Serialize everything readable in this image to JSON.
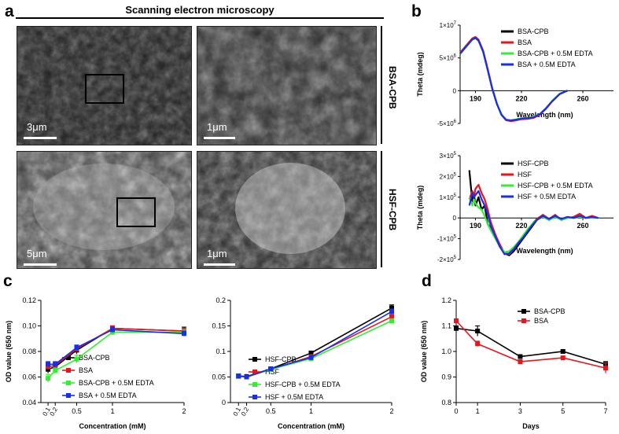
{
  "panels": {
    "a": "a",
    "b": "b",
    "c": "c",
    "d": "d"
  },
  "sem": {
    "title": "Scanning electron microscopy",
    "row1_label": "BSA-CPB",
    "row2_label": "HSF-CPB",
    "scale_left_top": "3μm",
    "scale_right_top": "1μm",
    "scale_left_bottom": "5μm",
    "scale_right_bottom": "1μm"
  },
  "colors": {
    "black": "#000000",
    "red": "#e8161c",
    "green": "#33ee33",
    "blue": "#1a2ee8"
  },
  "chart_data": [
    {
      "id": "b-top",
      "type": "line",
      "xlabel": "Wavelength (nm)",
      "ylabel": "Theta (mdeg)",
      "xlim": [
        180,
        280
      ],
      "ylim": [
        -5000000,
        10000000
      ],
      "x_ticks": [
        190,
        220,
        260
      ],
      "y_ticks": [
        {
          "v": 10000000,
          "base": "1×10",
          "exp": "7"
        },
        {
          "v": 5000000,
          "base": "5×10",
          "exp": "6"
        },
        {
          "v": 0,
          "base": "0",
          "exp": ""
        },
        {
          "v": -5000000,
          "base": "-5×10",
          "exp": "6"
        }
      ],
      "series": [
        {
          "name": "BSA-CPB",
          "color": "#000000",
          "x": [
            180,
            184,
            188,
            190,
            192,
            195,
            198,
            201,
            204,
            207,
            210,
            213,
            216,
            220,
            224,
            228,
            232,
            236,
            240,
            245,
            250
          ],
          "y": [
            5700000,
            6800000,
            7900000,
            8100000,
            7700000,
            6000000,
            3200000,
            300000,
            -2000000,
            -3700000,
            -4500000,
            -4600000,
            -4500000,
            -4300000,
            -4250000,
            -4100000,
            -3600000,
            -2700000,
            -1600000,
            -500000,
            0
          ]
        },
        {
          "name": "BSA",
          "color": "#e8161c",
          "x": [
            180,
            184,
            188,
            190,
            192,
            195,
            198,
            201,
            204,
            207,
            210,
            213,
            216,
            220,
            224,
            228,
            232,
            236,
            240,
            245,
            250
          ],
          "y": [
            5800000,
            6900000,
            8000000,
            8200000,
            7800000,
            6100000,
            3300000,
            350000,
            -2000000,
            -3700000,
            -4500000,
            -4650000,
            -4550000,
            -4350000,
            -4300000,
            -4150000,
            -3650000,
            -2750000,
            -1650000,
            -500000,
            0
          ]
        },
        {
          "name": "BSA-CPB + 0.5M EDTA",
          "color": "#33ee33",
          "x": [
            180,
            184,
            188,
            190,
            192,
            195,
            198,
            201,
            204,
            207,
            210,
            213,
            216,
            220,
            224,
            228,
            232,
            236,
            240,
            245,
            250
          ],
          "y": [
            5600000,
            6700000,
            7800000,
            8000000,
            7600000,
            5900000,
            3100000,
            250000,
            -2000000,
            -3600000,
            -4400000,
            -4500000,
            -4400000,
            -4200000,
            -4150000,
            -4000000,
            -3550000,
            -2650000,
            -1550000,
            -450000,
            0
          ]
        },
        {
          "name": "BSA + 0.5M EDTA",
          "color": "#1a2ee8",
          "x": [
            180,
            184,
            188,
            190,
            192,
            195,
            198,
            201,
            204,
            207,
            210,
            213,
            216,
            220,
            224,
            228,
            232,
            236,
            240,
            245,
            250
          ],
          "y": [
            5650000,
            6750000,
            7850000,
            8050000,
            7650000,
            5950000,
            3150000,
            280000,
            -2050000,
            -3700000,
            -4450000,
            -4550000,
            -4450000,
            -4250000,
            -4200000,
            -4050000,
            -3600000,
            -2700000,
            -1600000,
            -480000,
            0
          ]
        }
      ]
    },
    {
      "id": "b-bottom",
      "type": "line",
      "xlabel": "Wavelength (nm)",
      "ylabel": "Theta (mdeg)",
      "xlim": [
        180,
        280
      ],
      "ylim": [
        -200000,
        300000
      ],
      "x_ticks": [
        190,
        220,
        260
      ],
      "y_ticks": [
        {
          "v": 300000,
          "base": "3×10",
          "exp": "5"
        },
        {
          "v": 200000,
          "base": "2×10",
          "exp": "5"
        },
        {
          "v": 100000,
          "base": "1×10",
          "exp": "5"
        },
        {
          "v": 0,
          "base": "0",
          "exp": ""
        },
        {
          "v": -100000,
          "base": "-1×10",
          "exp": "5"
        },
        {
          "v": -200000,
          "base": "-2×10",
          "exp": "5"
        }
      ],
      "series": [
        {
          "name": "HSF-CPB",
          "color": "#000000",
          "x": [
            186,
            187,
            188,
            189,
            190,
            192,
            194,
            196,
            198,
            200,
            203,
            206,
            209,
            212,
            215,
            218,
            221,
            224,
            227,
            230,
            234,
            238,
            242,
            246,
            250,
            254,
            258,
            262,
            266,
            270
          ],
          "y": [
            230000,
            150000,
            80000,
            120000,
            60000,
            100000,
            40000,
            60000,
            -30000,
            -50000,
            -90000,
            -130000,
            -170000,
            -180000,
            -160000,
            -130000,
            -100000,
            -70000,
            -40000,
            -10000,
            10000,
            -10000,
            10000,
            -5000,
            5000,
            0,
            10000,
            0,
            5000,
            0
          ]
        },
        {
          "name": "HSF",
          "color": "#e8161c",
          "x": [
            186,
            187,
            188,
            189,
            190,
            192,
            194,
            196,
            198,
            200,
            203,
            206,
            209,
            212,
            215,
            218,
            221,
            224,
            227,
            230,
            234,
            238,
            242,
            246,
            250,
            254,
            258,
            262,
            266,
            270
          ],
          "y": [
            90000,
            110000,
            130000,
            100000,
            140000,
            160000,
            120000,
            90000,
            40000,
            -20000,
            -80000,
            -130000,
            -170000,
            -175000,
            -150000,
            -120000,
            -90000,
            -60000,
            -30000,
            -5000,
            15000,
            -5000,
            15000,
            -10000,
            0,
            5000,
            20000,
            0,
            10000,
            0
          ]
        },
        {
          "name": "HSF-CPB + 0.5M EDTA",
          "color": "#33ee33",
          "x": [
            186,
            187,
            188,
            189,
            190,
            192,
            194,
            196,
            198,
            200,
            203,
            206,
            209,
            212,
            215,
            218,
            221,
            224,
            227,
            230,
            234,
            238,
            242,
            246,
            250,
            254,
            258,
            262,
            266,
            270
          ],
          "y": [
            100000,
            80000,
            60000,
            90000,
            70000,
            50000,
            40000,
            10000,
            -30000,
            -60000,
            -100000,
            -140000,
            -165000,
            -160000,
            -140000,
            -115000,
            -85000,
            -55000,
            -30000,
            -10000,
            5000,
            -10000,
            5000,
            -10000,
            0,
            0,
            5000,
            0,
            0,
            0
          ]
        },
        {
          "name": "HSF + 0.5M EDTA",
          "color": "#1a2ee8",
          "x": [
            186,
            187,
            188,
            189,
            190,
            192,
            194,
            196,
            198,
            200,
            203,
            206,
            209,
            212,
            215,
            218,
            221,
            224,
            227,
            230,
            234,
            238,
            242,
            246,
            250,
            254,
            258,
            262,
            266,
            270
          ],
          "y": [
            60000,
            90000,
            120000,
            100000,
            110000,
            130000,
            90000,
            60000,
            20000,
            -40000,
            -90000,
            -140000,
            -175000,
            -170000,
            -150000,
            -120000,
            -95000,
            -65000,
            -35000,
            -10000,
            10000,
            -5000,
            10000,
            -5000,
            5000,
            0,
            10000,
            0,
            5000,
            0
          ]
        }
      ]
    },
    {
      "id": "c-left",
      "type": "line",
      "xlabel": "Concentration (mM)",
      "ylabel": "OD value (650 nm)",
      "xlim": [
        0,
        2
      ],
      "ylim": [
        0.04,
        0.12
      ],
      "x_ticks": [
        {
          "v": 0.1,
          "label": "0.1"
        },
        {
          "v": 0.2,
          "label": "0.2"
        },
        {
          "v": 0.5,
          "label": "0.5"
        },
        {
          "v": 1,
          "label": "1"
        },
        {
          "v": 2,
          "label": "2"
        }
      ],
      "y_ticks": [
        0.04,
        0.06,
        0.08,
        0.1,
        0.12
      ],
      "series": [
        {
          "name": "BSA-CPB",
          "color": "#000000",
          "marker": "square",
          "x": [
            0.1,
            0.2,
            0.5,
            1,
            2
          ],
          "y": [
            0.066,
            0.068,
            0.081,
            0.098,
            0.096
          ],
          "err": [
            0.003,
            0.002,
            0.003,
            0.002,
            0.003
          ]
        },
        {
          "name": "BSA",
          "color": "#e8161c",
          "marker": "square",
          "x": [
            0.1,
            0.2,
            0.5,
            1,
            2
          ],
          "y": [
            0.068,
            0.069,
            0.082,
            0.098,
            0.096
          ],
          "err": [
            0.002,
            0.002,
            0.002,
            0.002,
            0.002
          ]
        },
        {
          "name": "BSA-CPB + 0.5M EDTA",
          "color": "#33ee33",
          "marker": "square",
          "x": [
            0.1,
            0.2,
            0.5,
            1,
            2
          ],
          "y": [
            0.059,
            0.065,
            0.074,
            0.095,
            0.095
          ],
          "err": [
            0.003,
            0.002,
            0.003,
            0.002,
            0.002
          ]
        },
        {
          "name": "BSA + 0.5M EDTA",
          "color": "#1a2ee8",
          "marker": "square",
          "x": [
            0.1,
            0.2,
            0.5,
            1,
            2
          ],
          "y": [
            0.07,
            0.07,
            0.083,
            0.097,
            0.094
          ],
          "err": [
            0.002,
            0.002,
            0.002,
            0.002,
            0.002
          ]
        }
      ]
    },
    {
      "id": "c-right",
      "type": "line",
      "xlabel": "Concentration (mM)",
      "ylabel": "",
      "xlim": [
        0,
        2
      ],
      "ylim": [
        0,
        0.2
      ],
      "x_ticks": [
        {
          "v": 0.1,
          "label": "0.1"
        },
        {
          "v": 0.2,
          "label": "0.2"
        },
        {
          "v": 0.5,
          "label": "0.5"
        },
        {
          "v": 1,
          "label": "1"
        },
        {
          "v": 2,
          "label": "2"
        }
      ],
      "y_ticks": [
        0,
        0.05,
        0.1,
        0.15,
        0.2
      ],
      "y_tick_labels": [
        "0",
        "0.05",
        "0.1",
        "0.15",
        "0.2"
      ],
      "series": [
        {
          "name": "HSF-CPB",
          "color": "#000000",
          "marker": "square",
          "x": [
            0.1,
            0.2,
            0.5,
            1,
            2
          ],
          "y": [
            0.052,
            0.051,
            0.066,
            0.097,
            0.185
          ],
          "err": [
            0.002,
            0.002,
            0.002,
            0.003,
            0.006
          ]
        },
        {
          "name": "HSF",
          "color": "#e8161c",
          "marker": "square",
          "x": [
            0.1,
            0.2,
            0.5,
            1,
            2
          ],
          "y": [
            0.051,
            0.05,
            0.065,
            0.09,
            0.168
          ],
          "err": [
            0.002,
            0.002,
            0.002,
            0.002,
            0.004
          ]
        },
        {
          "name": "HSF-CPB + 0.5M EDTA",
          "color": "#33ee33",
          "marker": "square",
          "x": [
            0.1,
            0.2,
            0.5,
            1,
            2
          ],
          "y": [
            0.051,
            0.05,
            0.065,
            0.086,
            0.16
          ],
          "err": [
            0.002,
            0.002,
            0.002,
            0.002,
            0.004
          ]
        },
        {
          "name": "HSF + 0.5M EDTA",
          "color": "#1a2ee8",
          "marker": "square",
          "x": [
            0.1,
            0.2,
            0.5,
            1,
            2
          ],
          "y": [
            0.052,
            0.05,
            0.066,
            0.088,
            0.178
          ],
          "err": [
            0.002,
            0.002,
            0.002,
            0.002,
            0.005
          ]
        }
      ]
    },
    {
      "id": "d",
      "type": "line",
      "xlabel": "Days",
      "ylabel": "OD value (650 nm)",
      "xlim": [
        0,
        7
      ],
      "ylim": [
        0.8,
        1.2
      ],
      "x_ticks": [
        {
          "v": 0,
          "label": "0"
        },
        {
          "v": 1,
          "label": "1"
        },
        {
          "v": 3,
          "label": "3"
        },
        {
          "v": 5,
          "label": "5"
        },
        {
          "v": 7,
          "label": "7"
        }
      ],
      "y_ticks": [
        0.8,
        0.9,
        1.0,
        1.1,
        1.2
      ],
      "y_tick_labels": [
        "0.8",
        "0.9",
        "1.0",
        "1.1",
        "1.2"
      ],
      "series": [
        {
          "name": "BSA-CPB",
          "color": "#000000",
          "marker": "square",
          "x": [
            0,
            1,
            3,
            5,
            7
          ],
          "y": [
            1.09,
            1.08,
            0.98,
            1.0,
            0.95
          ],
          "err": [
            0.01,
            0.02,
            0.005,
            0.005,
            0.01
          ]
        },
        {
          "name": "BSA",
          "color": "#e8161c",
          "marker": "square",
          "x": [
            0,
            1,
            3,
            5,
            7
          ],
          "y": [
            1.12,
            1.03,
            0.96,
            0.975,
            0.935
          ],
          "err": [
            0.005,
            0.01,
            0.005,
            0.005,
            0.02
          ]
        }
      ]
    }
  ]
}
